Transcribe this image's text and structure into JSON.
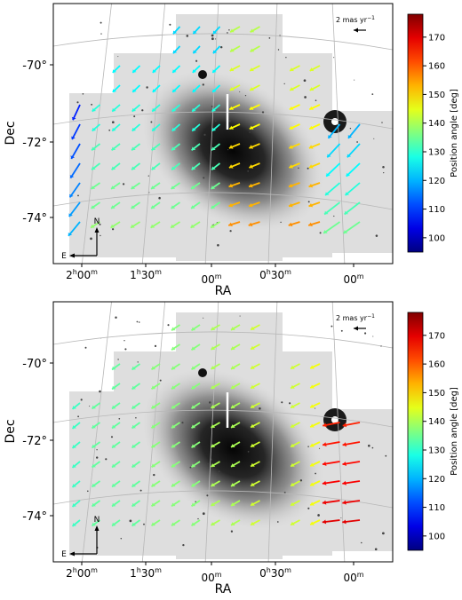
{
  "chart_data": [
    {
      "type": "quiver",
      "xlabel": "RA",
      "ylabel": "Dec",
      "x_ticks": [
        {
          "base": "2",
          "sup1": "h",
          "mid": "00",
          "sup2": "m"
        },
        {
          "base": "1",
          "sup1": "h",
          "mid": "30",
          "sup2": "m"
        },
        {
          "base": "",
          "sup1": "",
          "mid": "00",
          "sup2": "m"
        },
        {
          "base": "0",
          "sup1": "h",
          "mid": "30",
          "sup2": "m"
        },
        {
          "base": "",
          "sup1": "",
          "mid": "00",
          "sup2": "m"
        }
      ],
      "y_ticks": [
        "-70°",
        "-72°",
        "-74°"
      ],
      "scale_label": "2 mas yr",
      "scale_exp": "−1",
      "compass": {
        "north": "N",
        "east": "E"
      },
      "colorbar": {
        "label": "Position angle [deg]",
        "ticks": [
          100,
          110,
          120,
          130,
          140,
          150,
          160,
          170
        ],
        "range": [
          95,
          178
        ],
        "colormap": "jet"
      },
      "arrow_field": {
        "mode": "raw",
        "center_pa": 138,
        "grid_pa_step": 6,
        "far_field_pa": 100
      }
    },
    {
      "type": "quiver",
      "xlabel": "RA",
      "ylabel": "Dec",
      "x_ticks": [
        {
          "base": "2",
          "sup1": "h",
          "mid": "00",
          "sup2": "m"
        },
        {
          "base": "1",
          "sup1": "h",
          "mid": "30",
          "sup2": "m"
        },
        {
          "base": "",
          "sup1": "",
          "mid": "00",
          "sup2": "m"
        },
        {
          "base": "0",
          "sup1": "h",
          "mid": "30",
          "sup2": "m"
        },
        {
          "base": "",
          "sup1": "",
          "mid": "00",
          "sup2": "m"
        }
      ],
      "y_ticks": [
        "-70°",
        "-72°",
        "-74°"
      ],
      "scale_label": "2 mas yr",
      "scale_exp": "−1",
      "compass": {
        "north": "N",
        "east": "E"
      },
      "colorbar": {
        "label": "Position angle [deg]",
        "ticks": [
          100,
          110,
          120,
          130,
          140,
          150,
          160,
          170
        ],
        "range": [
          95,
          178
        ],
        "colormap": "jet"
      },
      "arrow_field": {
        "mode": "corrected",
        "center_pa": 140,
        "grid_pa_step": 3,
        "far_field_pa": 160
      }
    }
  ]
}
